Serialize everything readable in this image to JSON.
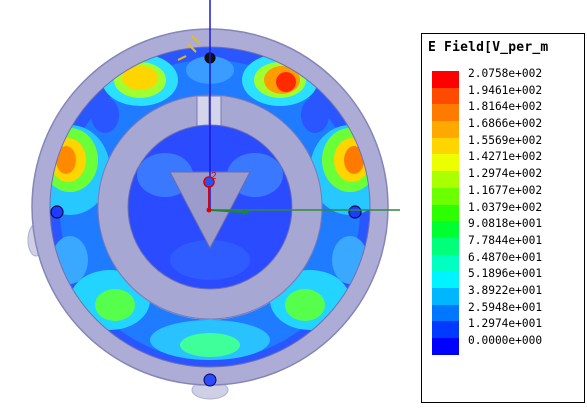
{
  "legend": {
    "title": "E Field[V_per_m",
    "entries": [
      {
        "label": "2.0758e+002",
        "color": "#ff0000"
      },
      {
        "label": "1.9461e+002",
        "color": "#ff4a00"
      },
      {
        "label": "1.8164e+002",
        "color": "#ff7b00"
      },
      {
        "label": "1.6866e+002",
        "color": "#ffa900"
      },
      {
        "label": "1.5569e+002",
        "color": "#ffd500"
      },
      {
        "label": "1.4271e+002",
        "color": "#ecff00"
      },
      {
        "label": "1.2974e+002",
        "color": "#aaff00"
      },
      {
        "label": "1.1677e+002",
        "color": "#6bff00"
      },
      {
        "label": "1.0379e+002",
        "color": "#2dff00"
      },
      {
        "label": "9.0818e+001",
        "color": "#00ff30"
      },
      {
        "label": "7.7844e+001",
        "color": "#00ff7b"
      },
      {
        "label": "6.4870e+001",
        "color": "#00ffc0"
      },
      {
        "label": "5.1896e+001",
        "color": "#00f4ff"
      },
      {
        "label": "3.8922e+001",
        "color": "#00b7ff"
      },
      {
        "label": "2.5948e+001",
        "color": "#0077ff"
      },
      {
        "label": "1.2974e+001",
        "color": "#0039ff"
      },
      {
        "label": "0.0000e+000",
        "color": "#0000ff"
      }
    ]
  },
  "axes": {
    "origin_label": "2"
  },
  "colors": {
    "housing": "#a9a9d4",
    "housing_dark": "#9a9acb",
    "field_low": "#1e55ff"
  }
}
